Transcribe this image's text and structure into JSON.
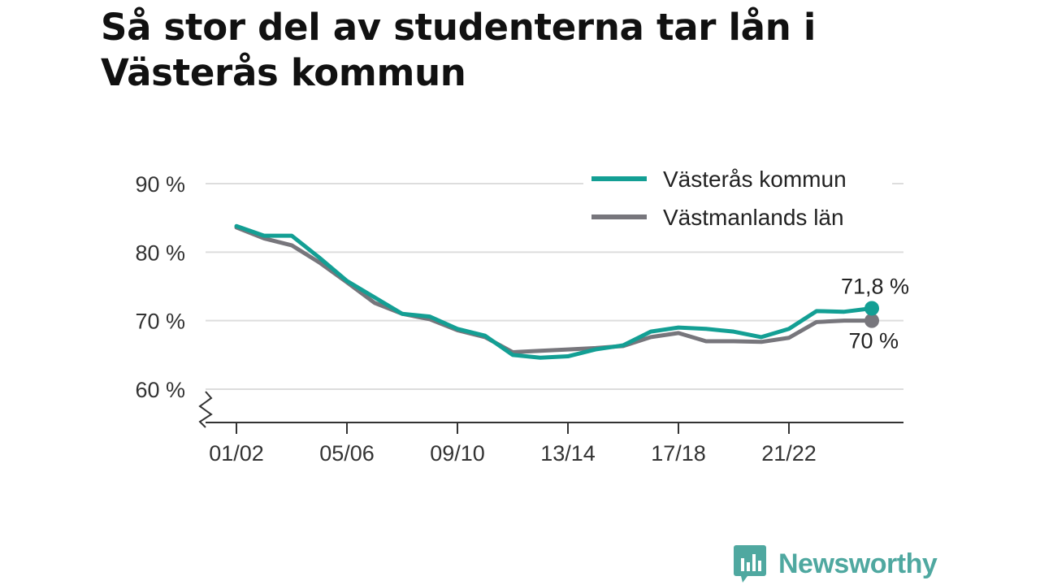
{
  "title": "Så stor del av studenterna tar lån i Västerås kommun",
  "brand": {
    "name": "Newsworthy",
    "icon": "newsworthy-logo-icon",
    "color": "#4fa8a0"
  },
  "colors": {
    "series_a": "#139f94",
    "series_b": "#77767c",
    "grid": "#dddddd",
    "axis": "#333333"
  },
  "chart_data": {
    "type": "line",
    "x": [
      "01/02",
      "02/03",
      "03/04",
      "04/05",
      "05/06",
      "06/07",
      "07/08",
      "08/09",
      "09/10",
      "10/11",
      "11/12",
      "12/13",
      "13/14",
      "14/15",
      "15/16",
      "16/17",
      "17/18",
      "18/19",
      "19/20",
      "20/21",
      "21/22",
      "22/23",
      "23/24",
      "24/25"
    ],
    "x_tick_labels": [
      "01/02",
      "05/06",
      "09/10",
      "13/14",
      "17/18",
      "21/22"
    ],
    "y_ticks": [
      60,
      70,
      80,
      90
    ],
    "y_tick_labels": [
      "60 %",
      "70 %",
      "80 %",
      "90 %"
    ],
    "ylim": [
      55,
      91
    ],
    "y_axis_break": true,
    "grid": true,
    "legend_position": "top-right",
    "series": [
      {
        "name": "Västerås kommun",
        "color": "#139f94",
        "values": [
          83.8,
          82.4,
          82.4,
          79.2,
          75.8,
          73.4,
          71.0,
          70.6,
          68.8,
          67.8,
          65.0,
          64.6,
          64.8,
          65.8,
          66.4,
          68.4,
          69.0,
          68.8,
          68.4,
          67.6,
          68.8,
          71.4,
          71.3,
          71.8
        ],
        "end_label": "71,8 %"
      },
      {
        "name": "Västmanlands län",
        "color": "#77767c",
        "values": [
          83.6,
          82.0,
          81.0,
          78.5,
          75.6,
          72.6,
          71.0,
          70.2,
          68.6,
          67.6,
          65.4,
          65.6,
          65.8,
          66.0,
          66.3,
          67.6,
          68.2,
          67.0,
          67.0,
          66.9,
          67.5,
          69.8,
          70.0,
          70.0
        ],
        "end_label": "70 %"
      }
    ]
  }
}
